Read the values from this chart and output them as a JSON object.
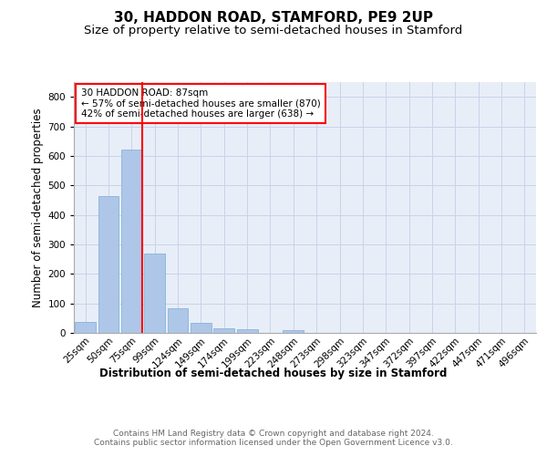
{
  "title1": "30, HADDON ROAD, STAMFORD, PE9 2UP",
  "title2": "Size of property relative to semi-detached houses in Stamford",
  "xlabel": "Distribution of semi-detached houses by size in Stamford",
  "ylabel": "Number of semi-detached properties",
  "bar_values": [
    37,
    463,
    622,
    268,
    82,
    35,
    14,
    12,
    0,
    10,
    0,
    0,
    0,
    0,
    0,
    0,
    0,
    0,
    0,
    0
  ],
  "categories": [
    "25sqm",
    "50sqm",
    "75sqm",
    "99sqm",
    "124sqm",
    "149sqm",
    "174sqm",
    "199sqm",
    "223sqm",
    "248sqm",
    "273sqm",
    "298sqm",
    "323sqm",
    "347sqm",
    "372sqm",
    "397sqm",
    "422sqm",
    "447sqm",
    "471sqm",
    "496sqm"
  ],
  "bar_color": "#aec6e8",
  "bar_edge_color": "#7aadd4",
  "grid_color": "#c8d4e8",
  "background_color": "#e8eef8",
  "annotation_text": "30 HADDON ROAD: 87sqm\n← 57% of semi-detached houses are smaller (870)\n42% of semi-detached houses are larger (638) →",
  "annotation_box_color": "white",
  "annotation_box_edge_color": "red",
  "vline_color": "red",
  "ylim": [
    0,
    850
  ],
  "yticks": [
    0,
    100,
    200,
    300,
    400,
    500,
    600,
    700,
    800
  ],
  "footer_text": "Contains HM Land Registry data © Crown copyright and database right 2024.\nContains public sector information licensed under the Open Government Licence v3.0.",
  "title1_fontsize": 11,
  "title2_fontsize": 9.5,
  "xlabel_fontsize": 8.5,
  "ylabel_fontsize": 8.5,
  "tick_fontsize": 7.5,
  "annotation_fontsize": 7.5,
  "footer_fontsize": 6.5
}
